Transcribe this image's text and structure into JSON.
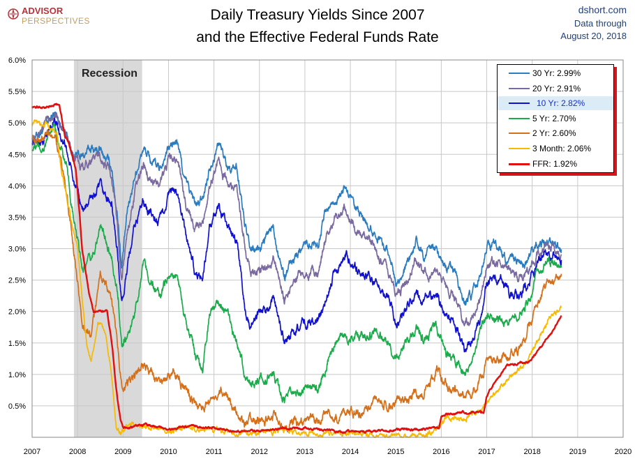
{
  "header": {
    "logo_line1": "ADVISOR",
    "logo_line2": "PERSPECTIVES",
    "title_line1": "Daily Treasury Yields Since 2007",
    "title_line2": "and the Effective Federal Funds Rate",
    "source": "dshort.com",
    "note_line1": "Data through",
    "note_line2": "August 20, 2018"
  },
  "colors": {
    "30yr": "#2a7bbf",
    "20yr": "#7a6aa0",
    "10yr": "#1010d0",
    "5yr": "#1aab4a",
    "2yr": "#d4701a",
    "3mo": "#f7b800",
    "ffr": "#e01010",
    "recession": "#d9d9d9",
    "legend_border_shadow": "#d6161c"
  },
  "chart_data": {
    "type": "line",
    "title": "Daily Treasury Yields Since 2007 and the Effective Federal Funds Rate",
    "xlim": [
      2007,
      2020
    ],
    "ylim": [
      0,
      6
    ],
    "x_ticks": [
      "2007",
      "2008",
      "2009",
      "2010",
      "2011",
      "2012",
      "2013",
      "2014",
      "2015",
      "2016",
      "2017",
      "2018",
      "2019",
      "2020"
    ],
    "y_ticks": [
      "0.5%",
      "1.0%",
      "1.5%",
      "2.0%",
      "2.5%",
      "3.0%",
      "3.5%",
      "4.0%",
      "4.5%",
      "5.0%",
      "5.5%",
      "6.0%"
    ],
    "grid": true,
    "legend_position": "top-right",
    "recession": {
      "label": "Recession",
      "start": 2007.92,
      "end": 2009.42
    },
    "series": [
      {
        "name": "30 Yr: 2.99%",
        "key": "30yr",
        "x": [
          2007.0,
          2007.25,
          2007.5,
          2007.75,
          2007.9,
          2008.1,
          2008.3,
          2008.5,
          2008.75,
          2008.9,
          2008.97,
          2009.1,
          2009.25,
          2009.45,
          2009.6,
          2009.8,
          2010.0,
          2010.2,
          2010.35,
          2010.6,
          2010.75,
          2010.9,
          2011.1,
          2011.3,
          2011.5,
          2011.7,
          2011.8,
          2012.0,
          2012.3,
          2012.55,
          2012.75,
          2013.0,
          2013.3,
          2013.45,
          2013.7,
          2013.9,
          2014.1,
          2014.3,
          2014.6,
          2014.8,
          2015.0,
          2015.2,
          2015.45,
          2015.6,
          2015.9,
          2016.1,
          2016.3,
          2016.52,
          2016.7,
          2016.85,
          2017.0,
          2017.3,
          2017.5,
          2017.7,
          2017.9,
          2018.1,
          2018.3,
          2018.45,
          2018.64
        ],
        "y": [
          4.75,
          4.9,
          5.15,
          4.85,
          4.5,
          4.45,
          4.6,
          4.55,
          4.3,
          3.4,
          2.7,
          3.6,
          4.15,
          4.6,
          4.4,
          4.25,
          4.6,
          4.7,
          4.1,
          3.7,
          3.75,
          4.3,
          4.7,
          4.3,
          4.3,
          3.3,
          2.95,
          3.0,
          3.35,
          2.55,
          2.85,
          3.1,
          3.1,
          3.6,
          3.8,
          3.95,
          3.6,
          3.45,
          3.2,
          3.0,
          2.5,
          2.65,
          3.1,
          2.9,
          3.0,
          2.65,
          2.6,
          2.15,
          2.3,
          2.55,
          3.1,
          3.0,
          2.75,
          2.8,
          2.8,
          3.05,
          3.1,
          3.05,
          2.99
        ]
      },
      {
        "name": "20 Yr: 2.91%",
        "key": "20yr",
        "x": [
          2007.0,
          2007.25,
          2007.5,
          2007.75,
          2007.9,
          2008.1,
          2008.3,
          2008.5,
          2008.75,
          2008.9,
          2008.97,
          2009.1,
          2009.25,
          2009.45,
          2009.6,
          2009.8,
          2010.0,
          2010.2,
          2010.35,
          2010.6,
          2010.75,
          2010.9,
          2011.1,
          2011.3,
          2011.5,
          2011.7,
          2011.8,
          2012.0,
          2012.3,
          2012.55,
          2012.75,
          2013.0,
          2013.3,
          2013.45,
          2013.7,
          2013.9,
          2014.1,
          2014.3,
          2014.6,
          2014.8,
          2015.0,
          2015.2,
          2015.45,
          2015.6,
          2015.9,
          2016.1,
          2016.3,
          2016.52,
          2016.7,
          2016.85,
          2017.0,
          2017.3,
          2017.5,
          2017.7,
          2017.9,
          2018.1,
          2018.3,
          2018.45,
          2018.64
        ],
        "y": [
          4.8,
          4.95,
          5.15,
          4.8,
          4.45,
          4.3,
          4.45,
          4.45,
          4.2,
          3.2,
          2.5,
          3.3,
          3.85,
          4.35,
          4.15,
          4.0,
          4.4,
          4.45,
          3.8,
          3.3,
          3.4,
          4.0,
          4.45,
          4.0,
          3.95,
          2.95,
          2.6,
          2.6,
          2.85,
          2.2,
          2.45,
          2.7,
          2.6,
          3.15,
          3.5,
          3.65,
          3.3,
          3.2,
          2.95,
          2.7,
          2.25,
          2.4,
          2.85,
          2.6,
          2.65,
          2.35,
          2.25,
          1.8,
          1.95,
          2.25,
          2.75,
          2.75,
          2.6,
          2.55,
          2.6,
          2.85,
          3.0,
          3.0,
          2.91
        ]
      },
      {
        "name": "10 Yr: 2.82%",
        "key": "10yr",
        "x": [
          2007.0,
          2007.25,
          2007.5,
          2007.75,
          2007.9,
          2008.1,
          2008.3,
          2008.5,
          2008.75,
          2008.9,
          2008.97,
          2009.1,
          2009.25,
          2009.45,
          2009.6,
          2009.8,
          2010.0,
          2010.2,
          2010.35,
          2010.6,
          2010.75,
          2010.9,
          2011.1,
          2011.3,
          2011.5,
          2011.7,
          2011.8,
          2012.0,
          2012.3,
          2012.55,
          2012.75,
          2013.0,
          2013.3,
          2013.45,
          2013.7,
          2013.9,
          2014.1,
          2014.3,
          2014.6,
          2014.8,
          2015.0,
          2015.2,
          2015.45,
          2015.6,
          2015.9,
          2016.1,
          2016.3,
          2016.52,
          2016.7,
          2016.85,
          2017.0,
          2017.3,
          2017.5,
          2017.7,
          2017.9,
          2018.1,
          2018.3,
          2018.45,
          2018.64
        ],
        "y": [
          4.7,
          4.7,
          5.05,
          4.6,
          4.1,
          3.6,
          3.8,
          3.95,
          3.7,
          2.8,
          2.1,
          2.7,
          3.3,
          3.8,
          3.55,
          3.4,
          3.85,
          3.9,
          3.3,
          2.6,
          2.55,
          3.3,
          3.6,
          3.35,
          3.15,
          2.0,
          1.8,
          1.95,
          2.2,
          1.5,
          1.7,
          1.85,
          1.9,
          2.25,
          2.7,
          2.95,
          2.7,
          2.6,
          2.45,
          2.3,
          1.8,
          2.0,
          2.35,
          2.15,
          2.25,
          1.9,
          1.8,
          1.4,
          1.6,
          1.85,
          2.45,
          2.5,
          2.3,
          2.2,
          2.4,
          2.75,
          2.95,
          2.9,
          2.82
        ]
      },
      {
        "name": "5 Yr: 2.70%",
        "key": "5yr",
        "x": [
          2007.0,
          2007.25,
          2007.5,
          2007.75,
          2007.9,
          2008.1,
          2008.3,
          2008.5,
          2008.75,
          2008.9,
          2008.97,
          2009.1,
          2009.25,
          2009.45,
          2009.6,
          2009.8,
          2010.0,
          2010.2,
          2010.35,
          2010.6,
          2010.75,
          2010.9,
          2011.1,
          2011.3,
          2011.5,
          2011.7,
          2011.8,
          2012.0,
          2012.3,
          2012.55,
          2012.75,
          2013.0,
          2013.3,
          2013.45,
          2013.7,
          2013.9,
          2014.1,
          2014.3,
          2014.6,
          2014.8,
          2015.0,
          2015.2,
          2015.45,
          2015.6,
          2015.9,
          2016.1,
          2016.3,
          2016.52,
          2016.7,
          2016.85,
          2017.0,
          2017.3,
          2017.5,
          2017.7,
          2017.9,
          2018.1,
          2018.3,
          2018.45,
          2018.64
        ],
        "y": [
          4.6,
          4.6,
          4.95,
          4.3,
          3.5,
          2.7,
          2.8,
          3.35,
          2.9,
          2.2,
          1.5,
          1.6,
          1.95,
          2.8,
          2.5,
          2.2,
          2.6,
          2.55,
          2.0,
          1.3,
          1.1,
          1.95,
          2.2,
          1.95,
          1.5,
          0.95,
          0.9,
          0.85,
          1.0,
          0.6,
          0.65,
          0.75,
          0.75,
          1.1,
          1.6,
          1.55,
          1.65,
          1.6,
          1.65,
          1.55,
          1.3,
          1.45,
          1.75,
          1.55,
          1.75,
          1.3,
          1.25,
          1.0,
          1.2,
          1.7,
          1.95,
          1.9,
          1.85,
          1.95,
          2.15,
          2.55,
          2.8,
          2.75,
          2.7
        ]
      },
      {
        "name": "2 Yr: 2.60%",
        "key": "2yr",
        "x": [
          2007.0,
          2007.25,
          2007.5,
          2007.75,
          2007.9,
          2008.1,
          2008.3,
          2008.5,
          2008.75,
          2008.9,
          2008.97,
          2009.1,
          2009.25,
          2009.45,
          2009.6,
          2009.8,
          2010.0,
          2010.2,
          2010.35,
          2010.6,
          2010.75,
          2010.9,
          2011.1,
          2011.3,
          2011.5,
          2011.7,
          2011.8,
          2012.0,
          2012.3,
          2012.55,
          2012.75,
          2013.0,
          2013.3,
          2013.45,
          2013.7,
          2013.9,
          2014.1,
          2014.3,
          2014.6,
          2014.8,
          2015.0,
          2015.2,
          2015.45,
          2015.6,
          2015.9,
          2016.1,
          2016.3,
          2016.52,
          2016.7,
          2016.85,
          2017.0,
          2017.3,
          2017.5,
          2017.7,
          2017.9,
          2018.1,
          2018.3,
          2018.45,
          2018.64
        ],
        "y": [
          4.8,
          4.7,
          4.9,
          3.9,
          3.1,
          1.8,
          1.6,
          2.6,
          2.2,
          1.3,
          0.85,
          0.85,
          0.9,
          1.2,
          1.0,
          0.85,
          0.95,
          1.0,
          0.8,
          0.5,
          0.45,
          0.6,
          0.75,
          0.7,
          0.4,
          0.2,
          0.25,
          0.25,
          0.35,
          0.22,
          0.25,
          0.25,
          0.25,
          0.35,
          0.35,
          0.35,
          0.4,
          0.45,
          0.55,
          0.5,
          0.55,
          0.6,
          0.7,
          0.65,
          1.05,
          0.8,
          0.8,
          0.6,
          0.75,
          0.9,
          1.2,
          1.25,
          1.35,
          1.4,
          1.75,
          2.1,
          2.45,
          2.55,
          2.6
        ]
      },
      {
        "name": "3 Month: 2.06%",
        "key": "3mo",
        "x": [
          2007.0,
          2007.3,
          2007.55,
          2007.65,
          2007.75,
          2007.85,
          2008.0,
          2008.2,
          2008.3,
          2008.45,
          2008.6,
          2008.75,
          2008.85,
          2008.95,
          2009.1,
          2009.4,
          2010.0,
          2010.5,
          2011.0,
          2011.5,
          2012.0,
          2012.5,
          2013.0,
          2013.5,
          2014.0,
          2014.5,
          2015.0,
          2015.5,
          2015.95,
          2016.1,
          2016.5,
          2016.9,
          2017.0,
          2017.3,
          2017.5,
          2017.8,
          2018.0,
          2018.2,
          2018.4,
          2018.64
        ],
        "y": [
          5.0,
          5.0,
          4.85,
          4.2,
          3.9,
          3.5,
          3.0,
          1.5,
          1.2,
          1.85,
          1.7,
          1.0,
          0.2,
          0.05,
          0.2,
          0.18,
          0.1,
          0.15,
          0.12,
          0.05,
          0.08,
          0.1,
          0.07,
          0.05,
          0.05,
          0.03,
          0.02,
          0.02,
          0.15,
          0.3,
          0.3,
          0.45,
          0.55,
          0.8,
          0.95,
          1.15,
          1.35,
          1.65,
          1.9,
          2.06
        ]
      },
      {
        "name": "FFR: 1.92%",
        "key": "ffr",
        "x": [
          2007.0,
          2007.3,
          2007.6,
          2007.72,
          2007.8,
          2007.88,
          2007.96,
          2008.05,
          2008.1,
          2008.25,
          2008.35,
          2008.5,
          2008.65,
          2008.77,
          2008.82,
          2008.88,
          2008.95,
          2009.0,
          2009.5,
          2010.0,
          2010.5,
          2011.0,
          2011.5,
          2012.0,
          2012.5,
          2013.0,
          2013.5,
          2014.0,
          2014.5,
          2015.0,
          2015.5,
          2015.95,
          2016.0,
          2016.5,
          2016.93,
          2017.0,
          2017.2,
          2017.45,
          2017.95,
          2018.2,
          2018.45,
          2018.64
        ],
        "y": [
          5.25,
          5.25,
          5.3,
          4.8,
          4.7,
          4.5,
          4.25,
          3.5,
          3.0,
          2.3,
          2.0,
          2.0,
          2.0,
          1.4,
          1.0,
          0.6,
          0.25,
          0.15,
          0.2,
          0.12,
          0.18,
          0.15,
          0.1,
          0.1,
          0.15,
          0.15,
          0.1,
          0.09,
          0.1,
          0.12,
          0.13,
          0.15,
          0.35,
          0.4,
          0.4,
          0.65,
          0.9,
          1.15,
          1.2,
          1.45,
          1.7,
          1.92
        ]
      }
    ]
  }
}
